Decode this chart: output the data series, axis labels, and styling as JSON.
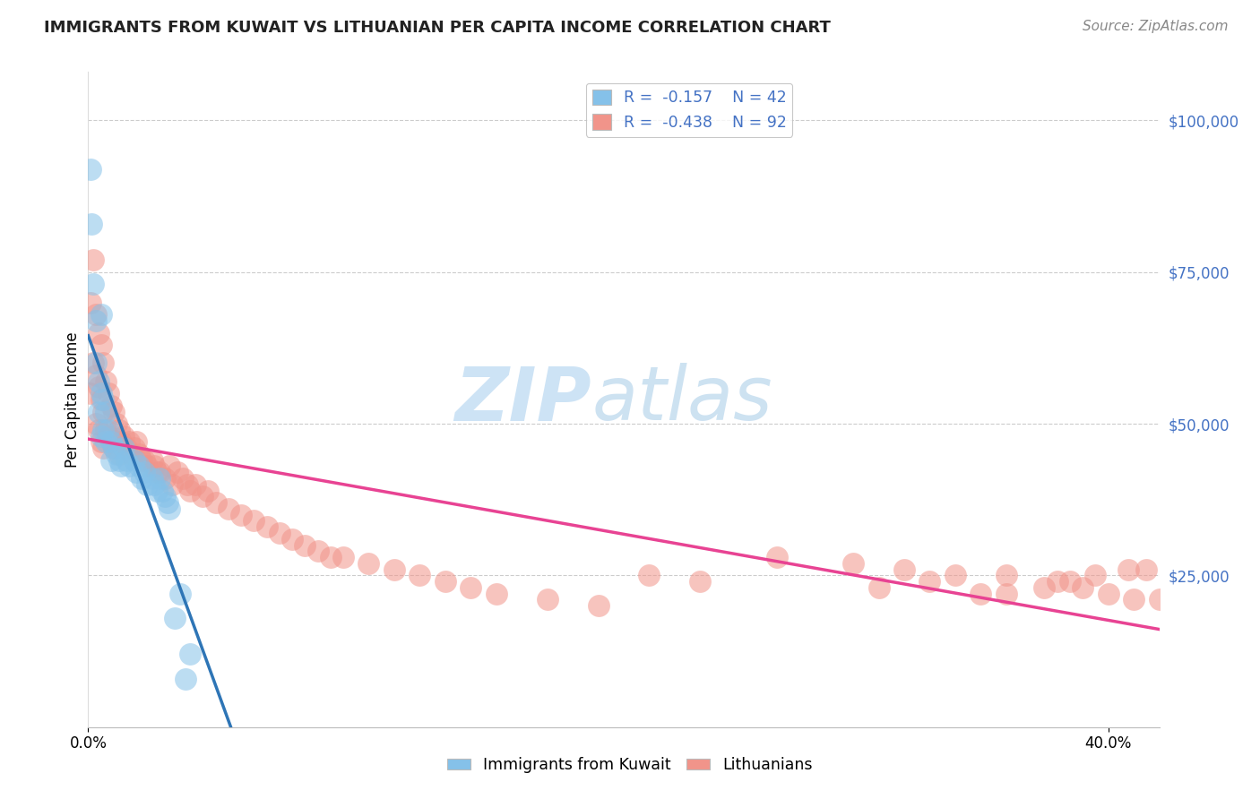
{
  "title": "IMMIGRANTS FROM KUWAIT VS LITHUANIAN PER CAPITA INCOME CORRELATION CHART",
  "source": "Source: ZipAtlas.com",
  "ylabel": "Per Capita Income",
  "xlim": [
    0.0,
    0.42
  ],
  "ylim": [
    0,
    108000
  ],
  "color_blue": "#85C1E9",
  "color_pink": "#F1948A",
  "color_blue_line": "#2E75B6",
  "color_pink_line": "#E84393",
  "color_dashed": "#A9CCE3",
  "background_color": "#FFFFFF",
  "grid_color": "#CCCCCC",
  "ytick_color": "#4472C4",
  "title_color": "#222222",
  "source_color": "#888888",
  "watermark_zip_color": "#C8E0F4",
  "watermark_atlas_color": "#C8DFF0",
  "kuwait_x": [
    0.001,
    0.0012,
    0.002,
    0.003,
    0.003,
    0.004,
    0.004,
    0.005,
    0.005,
    0.005,
    0.006,
    0.006,
    0.007,
    0.007,
    0.008,
    0.009,
    0.009,
    0.01,
    0.011,
    0.012,
    0.013,
    0.014,
    0.015,
    0.016,
    0.018,
    0.019,
    0.02,
    0.021,
    0.022,
    0.023,
    0.025,
    0.026,
    0.027,
    0.028,
    0.029,
    0.03,
    0.031,
    0.032,
    0.034,
    0.036,
    0.038,
    0.04
  ],
  "kuwait_y": [
    92000,
    83000,
    73000,
    67000,
    60000,
    57000,
    52000,
    68000,
    55000,
    48000,
    54000,
    49000,
    52000,
    47000,
    49000,
    47000,
    44000,
    46000,
    45000,
    44000,
    43000,
    46000,
    44000,
    43000,
    44000,
    42000,
    43000,
    41000,
    42000,
    40000,
    41000,
    40000,
    39000,
    41000,
    39000,
    38000,
    37000,
    36000,
    18000,
    22000,
    8000,
    12000
  ],
  "lith_x": [
    0.001,
    0.001,
    0.002,
    0.002,
    0.003,
    0.003,
    0.003,
    0.004,
    0.004,
    0.004,
    0.005,
    0.005,
    0.005,
    0.006,
    0.006,
    0.006,
    0.007,
    0.007,
    0.008,
    0.008,
    0.009,
    0.009,
    0.01,
    0.01,
    0.011,
    0.012,
    0.012,
    0.013,
    0.014,
    0.015,
    0.016,
    0.017,
    0.018,
    0.019,
    0.02,
    0.021,
    0.022,
    0.023,
    0.025,
    0.026,
    0.027,
    0.028,
    0.03,
    0.032,
    0.033,
    0.035,
    0.037,
    0.039,
    0.04,
    0.042,
    0.045,
    0.047,
    0.05,
    0.055,
    0.06,
    0.065,
    0.07,
    0.075,
    0.08,
    0.085,
    0.09,
    0.095,
    0.1,
    0.11,
    0.12,
    0.13,
    0.14,
    0.15,
    0.16,
    0.18,
    0.2,
    0.22,
    0.24,
    0.27,
    0.3,
    0.32,
    0.34,
    0.36,
    0.38,
    0.39,
    0.4,
    0.41,
    0.42,
    0.415,
    0.408,
    0.395,
    0.385,
    0.375,
    0.36,
    0.35,
    0.33,
    0.31
  ],
  "lith_y": [
    70000,
    55000,
    77000,
    60000,
    68000,
    58000,
    50000,
    65000,
    56000,
    49000,
    63000,
    54000,
    47000,
    60000,
    52000,
    46000,
    57000,
    49000,
    55000,
    48000,
    53000,
    47000,
    52000,
    46000,
    50000,
    49000,
    45000,
    47000,
    48000,
    46000,
    47000,
    45000,
    46000,
    47000,
    45000,
    44000,
    44000,
    43000,
    44000,
    43000,
    42000,
    42000,
    41000,
    43000,
    40000,
    42000,
    41000,
    40000,
    39000,
    40000,
    38000,
    39000,
    37000,
    36000,
    35000,
    34000,
    33000,
    32000,
    31000,
    30000,
    29000,
    28000,
    28000,
    27000,
    26000,
    25000,
    24000,
    23000,
    22000,
    21000,
    20000,
    25000,
    24000,
    28000,
    27000,
    26000,
    25000,
    25000,
    24000,
    23000,
    22000,
    21000,
    21000,
    26000,
    26000,
    25000,
    24000,
    23000,
    22000,
    22000,
    24000,
    23000
  ]
}
